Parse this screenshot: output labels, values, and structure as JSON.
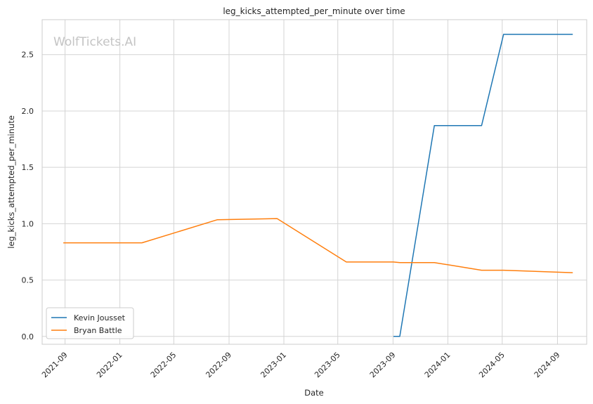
{
  "watermark": "WolfTickets.AI",
  "chart_data": {
    "type": "line",
    "title": "leg_kicks_attempted_per_minute over time",
    "xlabel": "Date",
    "ylabel": "leg_kicks_attempted_per_minute",
    "x_ticks": [
      "2021-09",
      "2022-01",
      "2022-05",
      "2022-09",
      "2023-01",
      "2023-05",
      "2023-09",
      "2024-01",
      "2024-05",
      "2024-09"
    ],
    "y_ticks": [
      "0.0",
      "0.5",
      "1.0",
      "1.5",
      "2.0",
      "2.5"
    ],
    "xlim": [
      "2021-07-12",
      "2024-11-05"
    ],
    "ylim": [
      -0.07,
      2.81
    ],
    "grid": true,
    "legend_position": "lower-left",
    "series": [
      {
        "name": "Kevin Jousset",
        "color": "#1f77b4",
        "points": [
          {
            "x": "2023-09-02",
            "y": 0.0
          },
          {
            "x": "2023-09-16",
            "y": 0.0
          },
          {
            "x": "2023-12-02",
            "y": 1.87
          },
          {
            "x": "2024-03-16",
            "y": 1.87
          },
          {
            "x": "2024-05-04",
            "y": 2.68
          },
          {
            "x": "2024-10-05",
            "y": 2.68
          }
        ]
      },
      {
        "name": "Bryan Battle",
        "color": "#ff7f0e",
        "points": [
          {
            "x": "2021-08-28",
            "y": 0.83
          },
          {
            "x": "2022-02-19",
            "y": 0.83
          },
          {
            "x": "2022-08-06",
            "y": 1.035
          },
          {
            "x": "2022-12-17",
            "y": 1.045
          },
          {
            "x": "2023-05-20",
            "y": 0.66
          },
          {
            "x": "2023-09-02",
            "y": 0.66
          },
          {
            "x": "2023-09-16",
            "y": 0.655
          },
          {
            "x": "2023-12-02",
            "y": 0.655
          },
          {
            "x": "2024-03-16",
            "y": 0.587
          },
          {
            "x": "2024-05-04",
            "y": 0.587
          },
          {
            "x": "2024-10-05",
            "y": 0.565
          }
        ]
      }
    ]
  }
}
